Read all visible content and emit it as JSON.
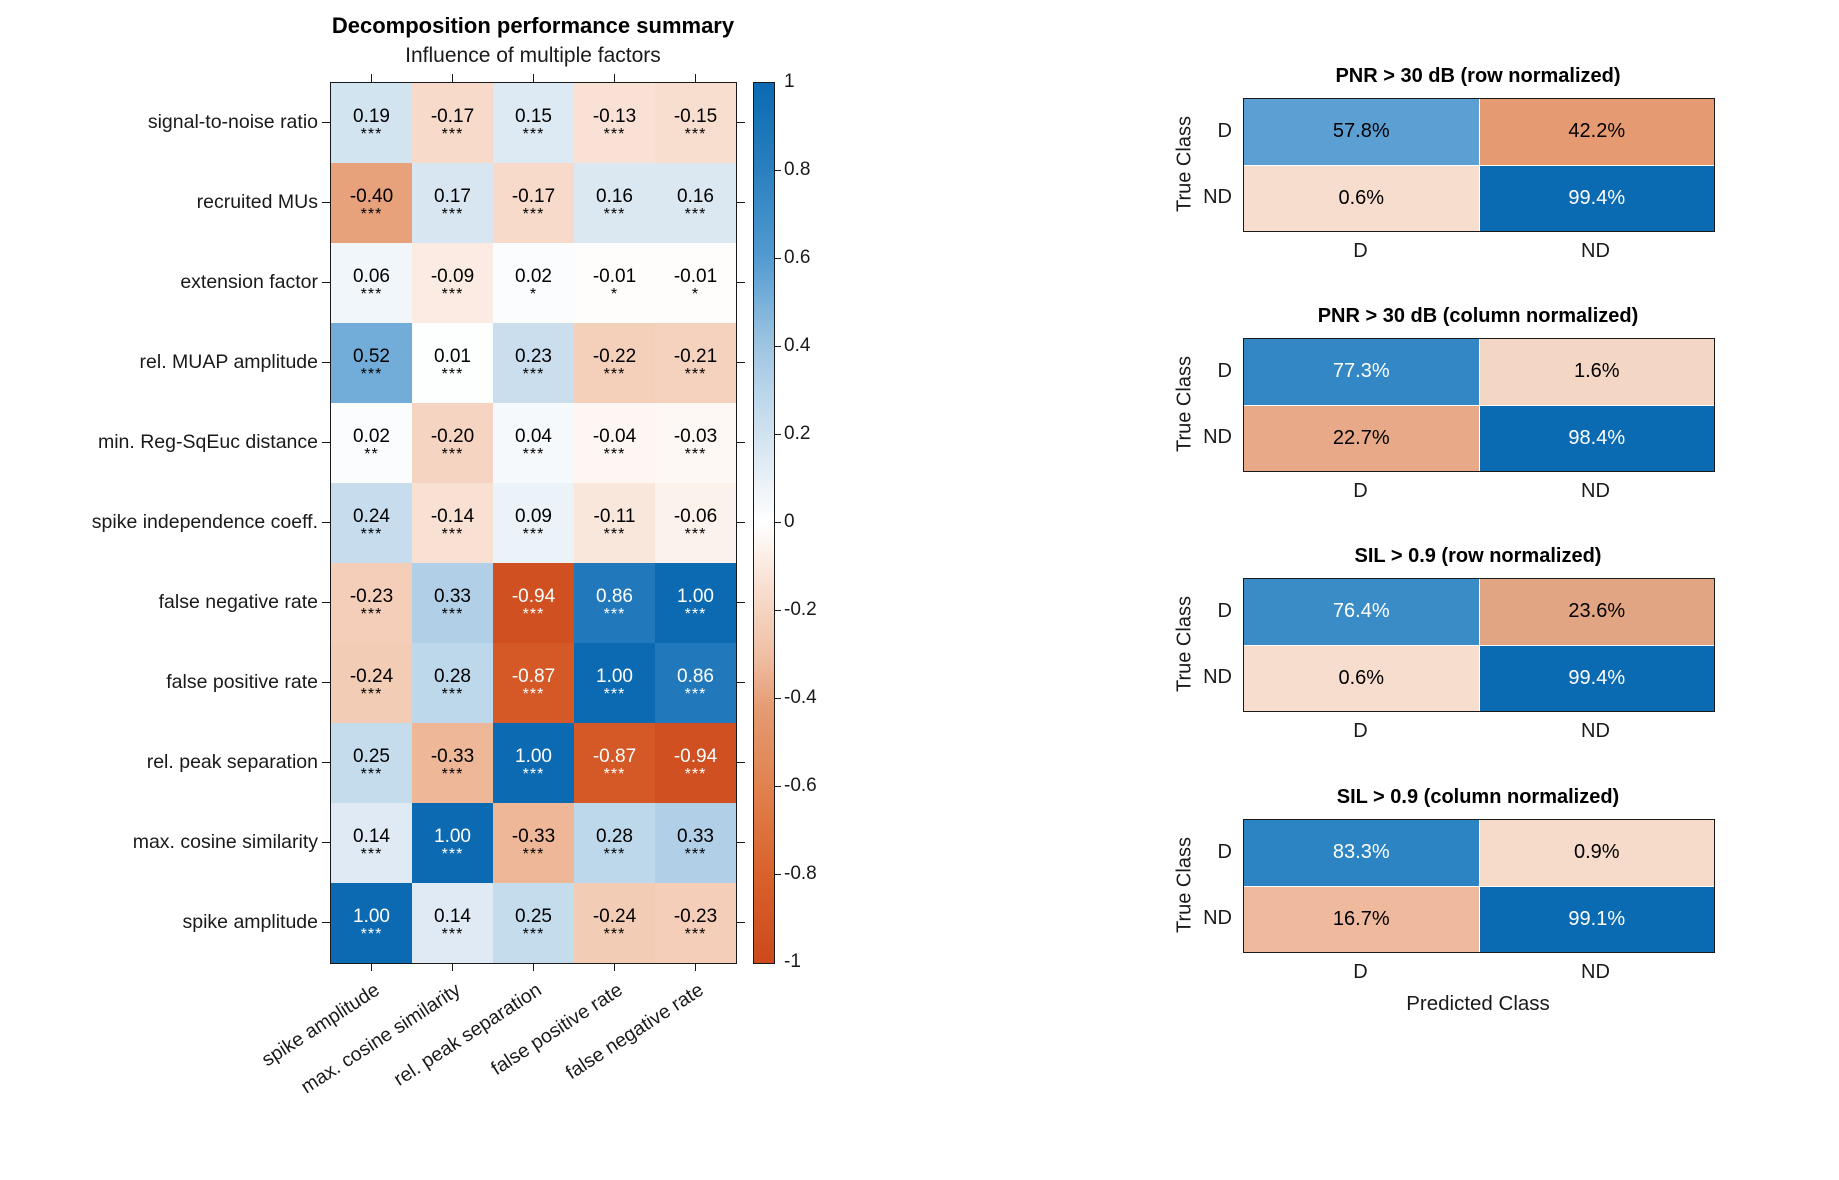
{
  "figure": {
    "predicted_class_label": "Predicted Class",
    "true_class_label": "True Class"
  },
  "chart_data": [
    {
      "type": "heatmap",
      "name": "correlation-heatmap",
      "title": "Decomposition performance summary",
      "subtitle": "Influence of multiple factors",
      "row_labels": [
        "signal-to-noise ratio",
        "recruited MUs",
        "extension factor",
        "rel. MUAP amplitude",
        "min. Reg-SqEuc distance",
        "spike independence coeff.",
        "false negative rate",
        "false positive rate",
        "rel. peak separation",
        "max. cosine similarity",
        "spike amplitude"
      ],
      "col_labels": [
        "spike amplitude",
        "max. cosine similarity",
        "rel. peak separation",
        "false positive rate",
        "false negative rate"
      ],
      "values": [
        [
          "0.19",
          "-0.17",
          "0.15",
          "-0.13",
          "-0.15"
        ],
        [
          "-0.40",
          "0.17",
          "-0.17",
          "0.16",
          "0.16"
        ],
        [
          "0.06",
          "-0.09",
          "0.02",
          "-0.01",
          "-0.01"
        ],
        [
          "0.52",
          "0.01",
          "0.23",
          "-0.22",
          "-0.21"
        ],
        [
          "0.02",
          "-0.20",
          "0.04",
          "-0.04",
          "-0.03"
        ],
        [
          "0.24",
          "-0.14",
          "0.09",
          "-0.11",
          "-0.06"
        ],
        [
          "-0.23",
          "0.33",
          "-0.94",
          "0.86",
          "1.00"
        ],
        [
          "-0.24",
          "0.28",
          "-0.87",
          "1.00",
          "0.86"
        ],
        [
          "0.25",
          "-0.33",
          "1.00",
          "-0.87",
          "-0.94"
        ],
        [
          "0.14",
          "1.00",
          "-0.33",
          "0.28",
          "0.33"
        ],
        [
          "1.00",
          "0.14",
          "0.25",
          "-0.24",
          "-0.23"
        ]
      ],
      "significance": [
        [
          "***",
          "***",
          "***",
          "***",
          "***"
        ],
        [
          "***",
          "***",
          "***",
          "***",
          "***"
        ],
        [
          "***",
          "***",
          "*",
          "*",
          "*"
        ],
        [
          "***",
          "***",
          "***",
          "***",
          "***"
        ],
        [
          "**",
          "***",
          "***",
          "***",
          "***"
        ],
        [
          "***",
          "***",
          "***",
          "***",
          "***"
        ],
        [
          "***",
          "***",
          "***",
          "***",
          "***"
        ],
        [
          "***",
          "***",
          "***",
          "***",
          "***"
        ],
        [
          "***",
          "***",
          "***",
          "***",
          "***"
        ],
        [
          "***",
          "***",
          "***",
          "***",
          "***"
        ],
        [
          "***",
          "***",
          "***",
          "***",
          "***"
        ]
      ],
      "colorbar": {
        "range": [
          -1,
          1
        ],
        "tick_labels": [
          "1",
          "0.8",
          "0.6",
          "0.4",
          "0.2",
          "0",
          "-0.2",
          "-0.4",
          "-0.6",
          "-0.8",
          "-1"
        ],
        "positive_color": "#0b6ab1",
        "mid_color": "#ffffff",
        "negative_color": "#cc491c"
      }
    },
    {
      "type": "heatmap",
      "subtype": "confusion_matrix",
      "title": "PNR > 30 dB (row normalized)",
      "ylabel": "True Class",
      "row_labels": [
        "D",
        "ND"
      ],
      "col_labels": [
        "D",
        "ND"
      ],
      "values": [
        [
          "57.8%",
          "42.2%"
        ],
        [
          "0.6%",
          "99.4%"
        ]
      ],
      "cell_colors": [
        [
          "#5b9fd3",
          "#e69a71"
        ],
        [
          "#f7ddcd",
          "#0b6bb2"
        ]
      ],
      "text_colors": [
        [
          "#000000",
          "#000000"
        ],
        [
          "#000000",
          "#ffffff"
        ]
      ]
    },
    {
      "type": "heatmap",
      "subtype": "confusion_matrix",
      "title": "PNR > 30 dB (column normalized)",
      "ylabel": "True Class",
      "row_labels": [
        "D",
        "ND"
      ],
      "col_labels": [
        "D",
        "ND"
      ],
      "values": [
        [
          "77.3%",
          "1.6%"
        ],
        [
          "22.7%",
          "98.4%"
        ]
      ],
      "cell_colors": [
        [
          "#3387c5",
          "#f4d6c4"
        ],
        [
          "#e7a987",
          "#0b6bb2"
        ]
      ],
      "text_colors": [
        [
          "#ffffff",
          "#000000"
        ],
        [
          "#000000",
          "#ffffff"
        ]
      ]
    },
    {
      "type": "heatmap",
      "subtype": "confusion_matrix",
      "title": "SIL > 0.9 (row normalized)",
      "ylabel": "True Class",
      "row_labels": [
        "D",
        "ND"
      ],
      "col_labels": [
        "D",
        "ND"
      ],
      "values": [
        [
          "76.4%",
          "23.6%"
        ],
        [
          "0.6%",
          "99.4%"
        ]
      ],
      "cell_colors": [
        [
          "#3a8cc7",
          "#e2a584"
        ],
        [
          "#f7ddcd",
          "#0b6bb2"
        ]
      ],
      "text_colors": [
        [
          "#ffffff",
          "#000000"
        ],
        [
          "#000000",
          "#ffffff"
        ]
      ]
    },
    {
      "type": "heatmap",
      "subtype": "confusion_matrix",
      "title": "SIL > 0.9 (column normalized)",
      "ylabel": "True Class",
      "row_labels": [
        "D",
        "ND"
      ],
      "col_labels": [
        "D",
        "ND"
      ],
      "values": [
        [
          "83.3%",
          "0.9%"
        ],
        [
          "16.7%",
          "99.1%"
        ]
      ],
      "cell_colors": [
        [
          "#2c84c3",
          "#f6dbca"
        ],
        [
          "#eeb99c",
          "#0b6bb2"
        ]
      ],
      "text_colors": [
        [
          "#ffffff",
          "#000000"
        ],
        [
          "#000000",
          "#ffffff"
        ]
      ]
    }
  ]
}
